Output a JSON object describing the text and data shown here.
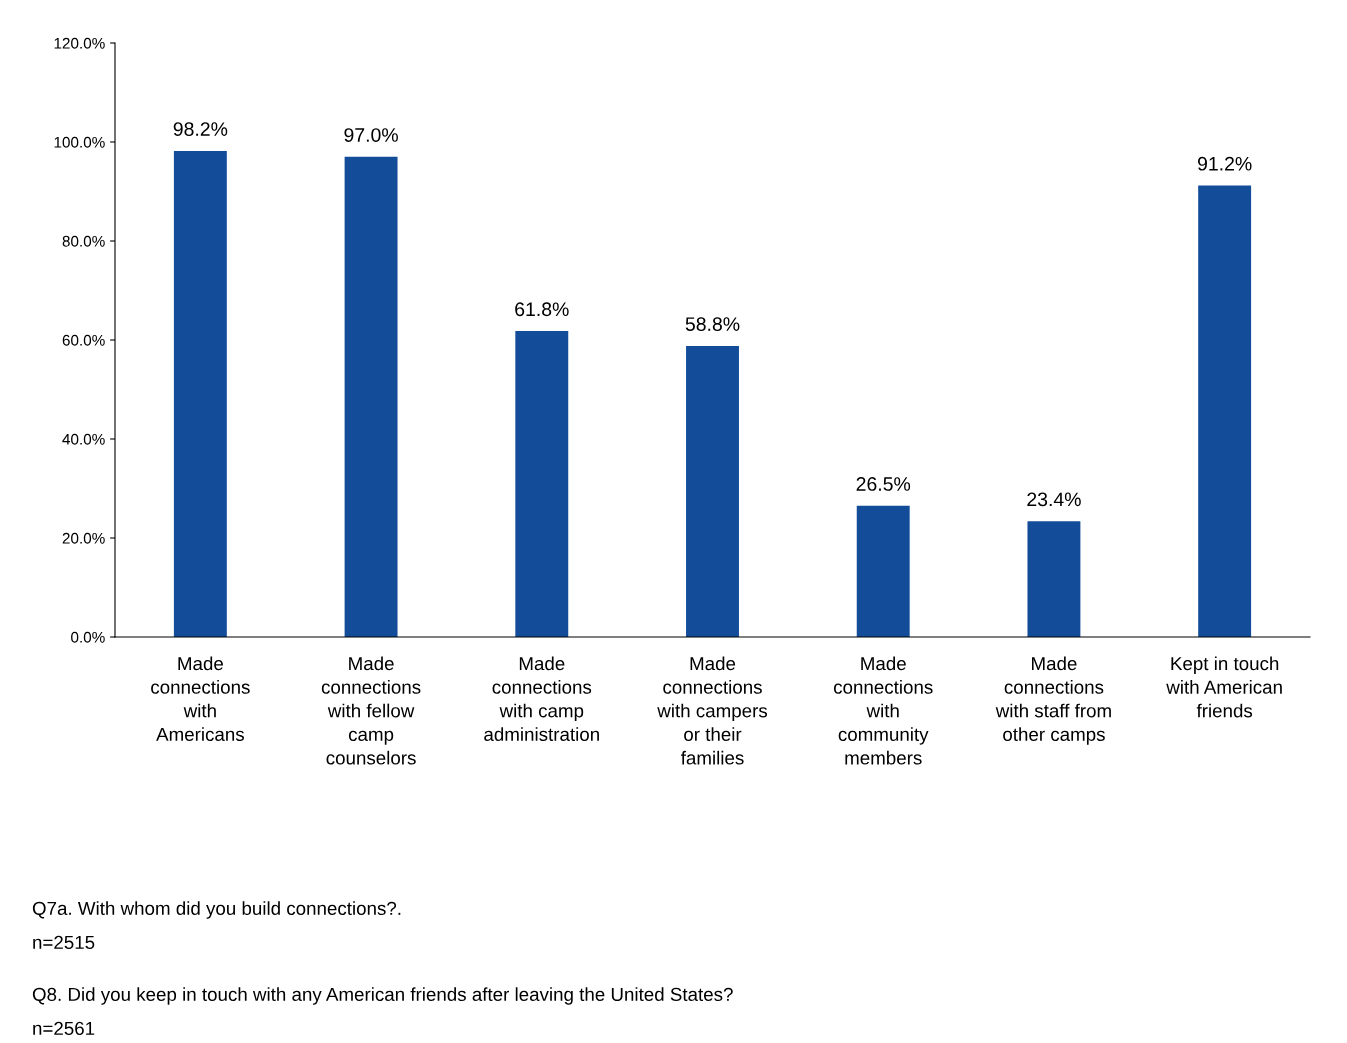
{
  "chart_data": {
    "type": "bar",
    "categories": [
      "Made\nconnections\nwith\nAmericans",
      "Made\nconnections\nwith fellow\ncamp\ncounselors",
      "Made\nconnections\nwith camp\nadministration",
      "Made\nconnections\nwith campers\nor their\nfamilies",
      "Made\nconnections\nwith\ncommunity\nmembers",
      "Made\nconnections\nwith staff from\nother camps",
      "Kept in touch\nwith American\nfriends"
    ],
    "values": [
      98.2,
      97.0,
      61.8,
      58.8,
      26.5,
      23.4,
      91.2
    ],
    "value_labels": [
      "98.2%",
      "97.0%",
      "61.8%",
      "58.8%",
      "26.5%",
      "23.4%",
      "91.2%"
    ],
    "color": "#134c99",
    "ylim": [
      0,
      120
    ],
    "yticks": [
      {
        "value": 0,
        "label": "0.0%"
      },
      {
        "value": 20,
        "label": "20.0%"
      },
      {
        "value": 40,
        "label": "40.0%"
      },
      {
        "value": 60,
        "label": "60.0%"
      },
      {
        "value": 80,
        "label": "80.0%"
      },
      {
        "value": 100,
        "label": "100.0%"
      },
      {
        "value": 120,
        "label": "120.0%"
      }
    ],
    "grid": false,
    "legend": false,
    "annotations": [
      "Q7a. With whom did you build connections?.",
      "n=2515",
      "Q8. Did you keep in touch with any American friends after leaving the United States?",
      "n=2561"
    ]
  }
}
